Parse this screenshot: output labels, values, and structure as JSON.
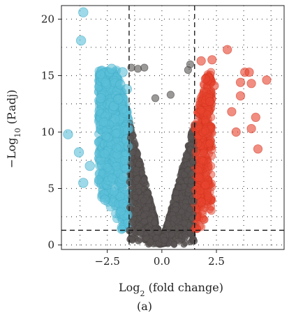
{
  "chart_data": {
    "type": "scatter",
    "title": "",
    "xlabel": {
      "base": "Log",
      "sub": "2",
      "rest": " (fold change)"
    },
    "ylabel": {
      "prefix": "−Log",
      "sub": "10",
      "rest": " (P.adj)"
    },
    "xlim": [
      -4.6,
      5.6
    ],
    "ylim": [
      -0.4,
      21.2
    ],
    "xticks": [
      -2.5,
      0.0,
      2.5
    ],
    "xtick_labels": [
      "−2.5",
      "0.0",
      "2.5"
    ],
    "yticks": [
      0,
      5,
      10,
      15,
      20
    ],
    "ytick_labels": [
      "0",
      "5",
      "10",
      "15",
      "20"
    ],
    "grid": "dotted",
    "thresholds": {
      "fold_change": [
        -1.5,
        1.5
      ],
      "padj": 1.3
    },
    "colors": {
      "down": "#5bc0d8",
      "not_significant": "#595453",
      "up": "#e8432e"
    },
    "series": [
      {
        "group": "down",
        "points": [
          [
            -3.6,
            20.6
          ],
          [
            -3.7,
            18.1
          ],
          [
            -2.3,
            15.6
          ],
          [
            -1.8,
            15.3
          ],
          [
            -4.3,
            9.8
          ],
          [
            -3.8,
            8.2
          ],
          [
            -3.6,
            5.5
          ],
          [
            -3.3,
            7.0
          ],
          [
            -2.6,
            4.0
          ],
          [
            -2.2,
            12.3
          ],
          [
            -2.8,
            13.0
          ],
          [
            -1.9,
            14.2
          ],
          [
            -1.6,
            13.8
          ],
          [
            -2.0,
            12.9
          ]
        ]
      },
      {
        "group": "not_significant",
        "points": [
          [
            -1.4,
            15.7
          ],
          [
            -1.1,
            15.6
          ],
          [
            -0.8,
            15.7
          ],
          [
            1.2,
            15.5
          ],
          [
            1.3,
            16.0
          ],
          [
            -0.3,
            13.0
          ],
          [
            0.4,
            13.3
          ]
        ]
      },
      {
        "group": "up",
        "points": [
          [
            1.8,
            16.3
          ],
          [
            2.3,
            16.4
          ],
          [
            3.0,
            17.3
          ],
          [
            3.8,
            15.3
          ],
          [
            4.0,
            15.3
          ],
          [
            4.1,
            14.3
          ],
          [
            4.8,
            14.6
          ],
          [
            3.6,
            14.4
          ],
          [
            2.4,
            14.1
          ],
          [
            3.6,
            13.2
          ],
          [
            4.3,
            11.3
          ],
          [
            4.1,
            10.3
          ],
          [
            4.4,
            8.5
          ],
          [
            3.4,
            10.0
          ],
          [
            3.2,
            11.8
          ],
          [
            2.0,
            14.7
          ],
          [
            2.2,
            12.7
          ],
          [
            1.7,
            6.0
          ],
          [
            2.0,
            5.3
          ],
          [
            1.8,
            3.8
          ]
        ]
      }
    ],
    "annotation": "(a)"
  }
}
